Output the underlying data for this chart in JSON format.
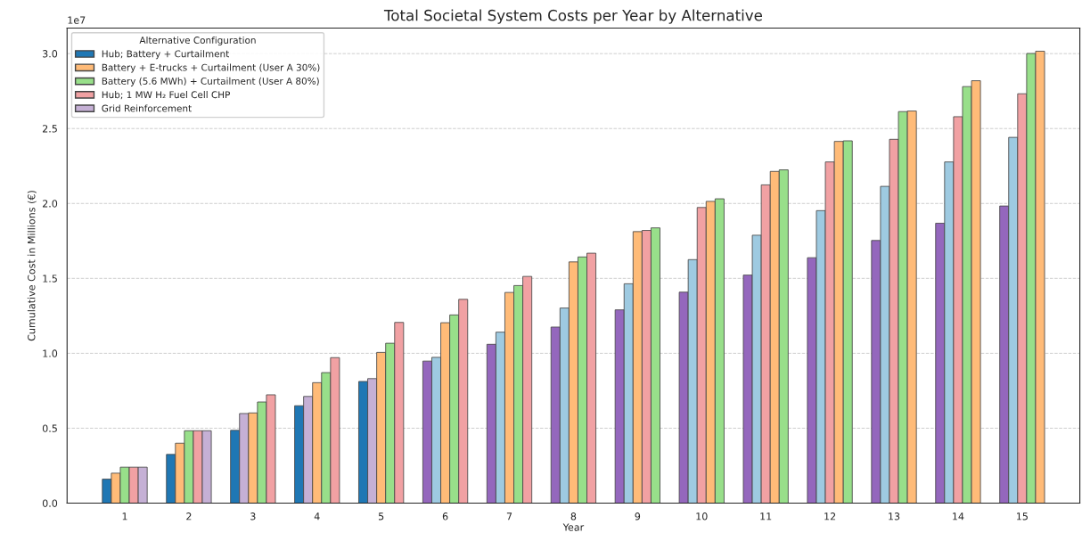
{
  "chart_data": {
    "type": "bar",
    "title": "Total Societal System Costs per Year by Alternative",
    "xlabel": "Year",
    "ylabel": "Cumulative Cost in Millions (€)",
    "legend_title": "Alternative Configuration",
    "categories": [
      "1",
      "2",
      "3",
      "4",
      "5",
      "6",
      "7",
      "8",
      "9",
      "10",
      "11",
      "12",
      "13",
      "14",
      "15"
    ],
    "series": [
      {
        "name": "Hub; Battery + Curtailment",
        "color": "#1f77b4",
        "values": [
          0.16,
          0.325,
          0.486,
          0.65,
          0.812,
          0.948,
          1.06,
          1.175,
          1.29,
          1.408,
          1.522,
          1.638,
          1.753,
          1.868,
          1.983
        ],
        "colors": [
          "#1f77b4",
          "#1f77b4",
          "#1f77b4",
          "#1f77b4",
          "#1f77b4",
          "#9467bd",
          "#9467bd",
          "#9467bd",
          "#9467bd",
          "#9467bd",
          "#9467bd",
          "#9467bd",
          "#9467bd",
          "#9467bd",
          "#9467bd"
        ]
      },
      {
        "name": "Battery + E-trucks + Curtailment (User A 30%)",
        "color": "#ffbb78",
        "values": [
          0.2,
          0.4,
          0.598,
          0.712,
          0.831,
          0.973,
          1.141,
          1.302,
          1.464,
          1.625,
          1.788,
          1.952,
          2.114,
          2.277,
          2.441
        ],
        "colors": [
          "#ffbb78",
          "#ffbb78",
          "#c5b0d5",
          "#c5b0d5",
          "#c5b0d5",
          "#9ecae1",
          "#9ecae1",
          "#9ecae1",
          "#9ecae1",
          "#9ecae1",
          "#9ecae1",
          "#9ecae1",
          "#9ecae1",
          "#9ecae1",
          "#9ecae1"
        ]
      },
      {
        "name": "Battery (5.6 MWh) + Curtailment (User A 80%)",
        "color": "#98df8a",
        "values": [
          0.24,
          0.483,
          0.602,
          0.804,
          1.006,
          1.204,
          1.406,
          1.61,
          1.812,
          1.973,
          2.124,
          2.277,
          2.428,
          2.579,
          2.732
        ],
        "colors": [
          "#98df8a",
          "#98df8a",
          "#ffbb78",
          "#ffbb78",
          "#ffbb78",
          "#ffbb78",
          "#ffbb78",
          "#ffbb78",
          "#ffbb78",
          "#f1a1a3",
          "#f1a1a3",
          "#f1a1a3",
          "#f1a1a3",
          "#f1a1a3",
          "#f1a1a3"
        ]
      },
      {
        "name": "Hub; 1 MW H₂ Fuel Cell CHP",
        "color": "#f1a1a3",
        "values": [
          0.24,
          0.483,
          0.675,
          0.871,
          1.067,
          1.256,
          1.452,
          1.643,
          1.82,
          2.014,
          2.214,
          2.414,
          2.613,
          2.78,
          3.001
        ],
        "colors": [
          "#f1a1a3",
          "#f1a1a3",
          "#98df8a",
          "#98df8a",
          "#98df8a",
          "#98df8a",
          "#98df8a",
          "#98df8a",
          "#f1a1a3",
          "#ffbb78",
          "#ffbb78",
          "#ffbb78",
          "#98df8a",
          "#98df8a",
          "#98df8a"
        ]
      },
      {
        "name": "Grid Reinforcement",
        "color": "#c5b0d5",
        "values": [
          0.24,
          0.483,
          0.723,
          0.971,
          1.206,
          1.36,
          1.513,
          1.668,
          1.837,
          2.031,
          2.224,
          2.418,
          2.617,
          2.819,
          3.016
        ],
        "colors": [
          "#c5b0d5",
          "#c5b0d5",
          "#f1a1a3",
          "#f1a1a3",
          "#f1a1a3",
          "#f1a1a3",
          "#f1a1a3",
          "#f1a1a3",
          "#98df8a",
          "#98df8a",
          "#98df8a",
          "#98df8a",
          "#ffbb78",
          "#ffbb78",
          "#ffbb78"
        ]
      }
    ],
    "ylim": [
      0,
      3.17
    ],
    "yticks": [
      {
        "value": 0,
        "label": "0.0"
      },
      0.5,
      {
        "value": 1,
        "label": "1.0"
      },
      1.5,
      {
        "value": 2,
        "label": "2.0"
      },
      2.5,
      {
        "value": 3,
        "label": "3.0"
      }
    ],
    "annotations": [
      "1e7"
    ],
    "grid": "y",
    "legend": "top left"
  }
}
